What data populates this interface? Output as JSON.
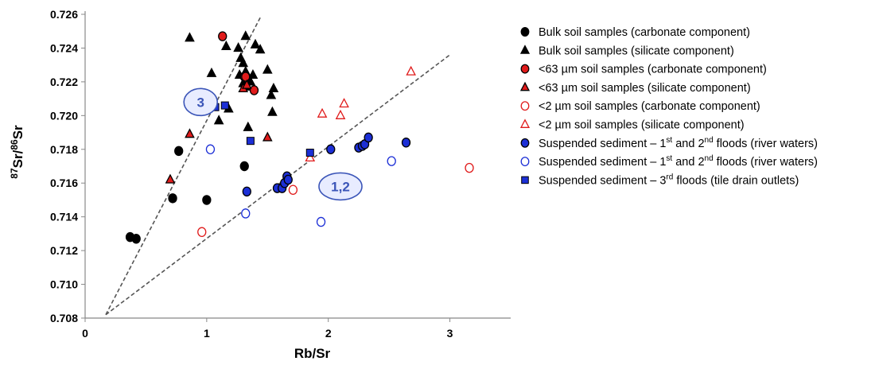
{
  "chart_data": {
    "type": "scatter",
    "xlabel": "Rb/Sr",
    "ylabel": {
      "pre": "",
      "sup1": "87",
      "mid": "Sr/",
      "sup2": "86",
      "post": "Sr"
    },
    "xlim": [
      0,
      3.5
    ],
    "ylim": [
      0.708,
      0.726
    ],
    "xticks": [
      0,
      1,
      2,
      3
    ],
    "yticks": [
      0.708,
      0.71,
      0.712,
      0.714,
      0.716,
      0.718,
      0.72,
      0.722,
      0.724,
      0.726
    ],
    "grid": false,
    "legend_placement": "right",
    "colors": {
      "black": "#000000",
      "red": "#e01b1b",
      "blue": "#1c2fd6",
      "dashed_line": "#555555",
      "annotation": "#3b55b8",
      "annotation_fill": "#e8ecff"
    },
    "series": [
      {
        "name": {
          "pre": "Bulk soil samples (carbonate component)"
        },
        "marker": "circle",
        "fill": "#000000",
        "stroke": "#000000",
        "points": [
          [
            0.37,
            0.7128
          ],
          [
            0.42,
            0.7127
          ],
          [
            0.72,
            0.7151
          ],
          [
            0.77,
            0.7179
          ],
          [
            1.0,
            0.715
          ],
          [
            1.31,
            0.717
          ]
        ]
      },
      {
        "name": {
          "pre": "Bulk soil samples (silicate component)"
        },
        "marker": "triangle",
        "fill": "#000000",
        "stroke": "#000000",
        "points": [
          [
            0.86,
            0.7246
          ],
          [
            1.04,
            0.7225
          ],
          [
            1.1,
            0.7197
          ],
          [
            1.16,
            0.7241
          ],
          [
            1.18,
            0.7204
          ],
          [
            1.26,
            0.724
          ],
          [
            1.28,
            0.7234
          ],
          [
            1.3,
            0.7231
          ],
          [
            1.32,
            0.7247
          ],
          [
            1.32,
            0.7226
          ],
          [
            1.33,
            0.7217
          ],
          [
            1.34,
            0.7193
          ],
          [
            1.36,
            0.722
          ],
          [
            1.38,
            0.7224
          ],
          [
            1.4,
            0.7242
          ],
          [
            1.44,
            0.7239
          ],
          [
            1.5,
            0.7227
          ],
          [
            1.53,
            0.7212
          ],
          [
            1.54,
            0.7202
          ],
          [
            1.55,
            0.7216
          ],
          [
            1.27,
            0.7224
          ],
          [
            1.3,
            0.7219
          ]
        ]
      },
      {
        "name": {
          "pre": "<63 µm soil samples (carbonate component)"
        },
        "marker": "circle",
        "fill": "#e01b1b",
        "stroke": "#000000",
        "points": [
          [
            1.13,
            0.7247
          ],
          [
            1.31,
            0.7223
          ],
          [
            1.32,
            0.7223
          ],
          [
            1.39,
            0.7215
          ]
        ]
      },
      {
        "name": {
          "pre": "<63 µm soil samples (silicate component)"
        },
        "marker": "triangle",
        "fill": "#e01b1b",
        "stroke": "#000000",
        "points": [
          [
            0.7,
            0.7162
          ],
          [
            0.86,
            0.7189
          ],
          [
            1.3,
            0.7216
          ],
          [
            1.33,
            0.7218
          ],
          [
            1.5,
            0.7187
          ]
        ]
      },
      {
        "name": {
          "pre": "<2 µm soil samples (carbonate component)"
        },
        "marker": "circle",
        "fill": "#ffffff",
        "stroke": "#e01b1b",
        "points": [
          [
            0.96,
            0.7131
          ],
          [
            1.71,
            0.7156
          ],
          [
            3.16,
            0.7169
          ]
        ]
      },
      {
        "name": {
          "pre": "<2 µm soil samples (silicate component)"
        },
        "marker": "triangle",
        "fill": "#ffffff",
        "stroke": "#e01b1b",
        "points": [
          [
            1.85,
            0.7175
          ],
          [
            1.95,
            0.7201
          ],
          [
            2.1,
            0.72
          ],
          [
            2.13,
            0.7207
          ],
          [
            2.68,
            0.7226
          ]
        ]
      },
      {
        "name": {
          "pre": "Suspended sediment – 1",
          "sup1": "st",
          "mid": " and 2",
          "sup2": "nd",
          "post": " floods (river waters)"
        },
        "marker": "circle",
        "fill": "#1c2fd6",
        "stroke": "#000000",
        "points": [
          [
            1.33,
            0.7155
          ],
          [
            1.58,
            0.7157
          ],
          [
            1.62,
            0.7157
          ],
          [
            1.64,
            0.716
          ],
          [
            1.66,
            0.7164
          ],
          [
            1.67,
            0.7162
          ],
          [
            2.02,
            0.718
          ],
          [
            2.25,
            0.7181
          ],
          [
            2.28,
            0.7182
          ],
          [
            2.3,
            0.7183
          ],
          [
            2.33,
            0.7187
          ],
          [
            2.64,
            0.7184
          ]
        ]
      },
      {
        "name": {
          "pre": "Suspended sediment – 1",
          "sup1": "st",
          "mid": " and 2",
          "sup2": "nd",
          "post": " floods (river waters)"
        },
        "marker": "circle",
        "fill": "#ffffff",
        "stroke": "#1c2fd6",
        "points": [
          [
            1.03,
            0.718
          ],
          [
            1.32,
            0.7142
          ],
          [
            1.94,
            0.7137
          ],
          [
            2.52,
            0.7173
          ]
        ]
      },
      {
        "name": {
          "pre": "Suspended sediment – 3",
          "sup1": "rd",
          "post": " floods (tile drain outlets)"
        },
        "marker": "square",
        "fill": "#1c2fd6",
        "stroke": "#000000",
        "points": [
          [
            1.07,
            0.7205
          ],
          [
            1.15,
            0.7206
          ],
          [
            1.36,
            0.7185
          ],
          [
            1.85,
            0.7178
          ]
        ]
      }
    ],
    "lines": [
      {
        "style": "dashed",
        "points": [
          [
            0.17,
            0.7082
          ],
          [
            1.44,
            0.7258
          ]
        ]
      },
      {
        "style": "dashed",
        "points": [
          [
            0.17,
            0.7082
          ],
          [
            3.0,
            0.7236
          ]
        ]
      }
    ],
    "annotations": [
      {
        "text": "3",
        "x": 0.95,
        "y": 0.7208,
        "shape": "ellipse"
      },
      {
        "text": "1,2",
        "x": 2.1,
        "y": 0.7158,
        "shape": "ellipse"
      }
    ]
  }
}
